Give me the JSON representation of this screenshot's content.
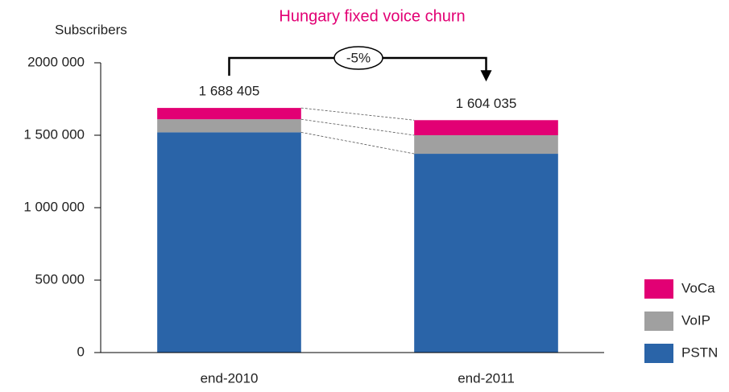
{
  "chart_data": {
    "type": "stacked_bar",
    "title": "Hungary fixed voice churn",
    "y_label": "Subscribers",
    "categories": [
      "end-2010",
      "end-2011"
    ],
    "series": [
      {
        "name": "PSTN",
        "color": "#2a64a8",
        "values": [
          1520000,
          1372000
        ]
      },
      {
        "name": "VoIP",
        "color": "#a0a0a0",
        "values": [
          90000,
          128000
        ]
      },
      {
        "name": "VoCa",
        "color": "#e20074",
        "values": [
          78405,
          104035
        ]
      }
    ],
    "totals": [
      1688405,
      1604035
    ],
    "total_labels": [
      "1 688 405",
      "1 604 035"
    ],
    "change_label": "-5%",
    "ylim": [
      0,
      2000000
    ],
    "yticks": [
      0,
      {
        "value": 500000,
        "label": "500 000"
      },
      {
        "value": 1000000,
        "label": "1 000 000"
      },
      {
        "value": 1500000,
        "label": "1 500 000"
      },
      {
        "value": 2000000,
        "label": "2000 000"
      }
    ],
    "legend": "lower right"
  }
}
